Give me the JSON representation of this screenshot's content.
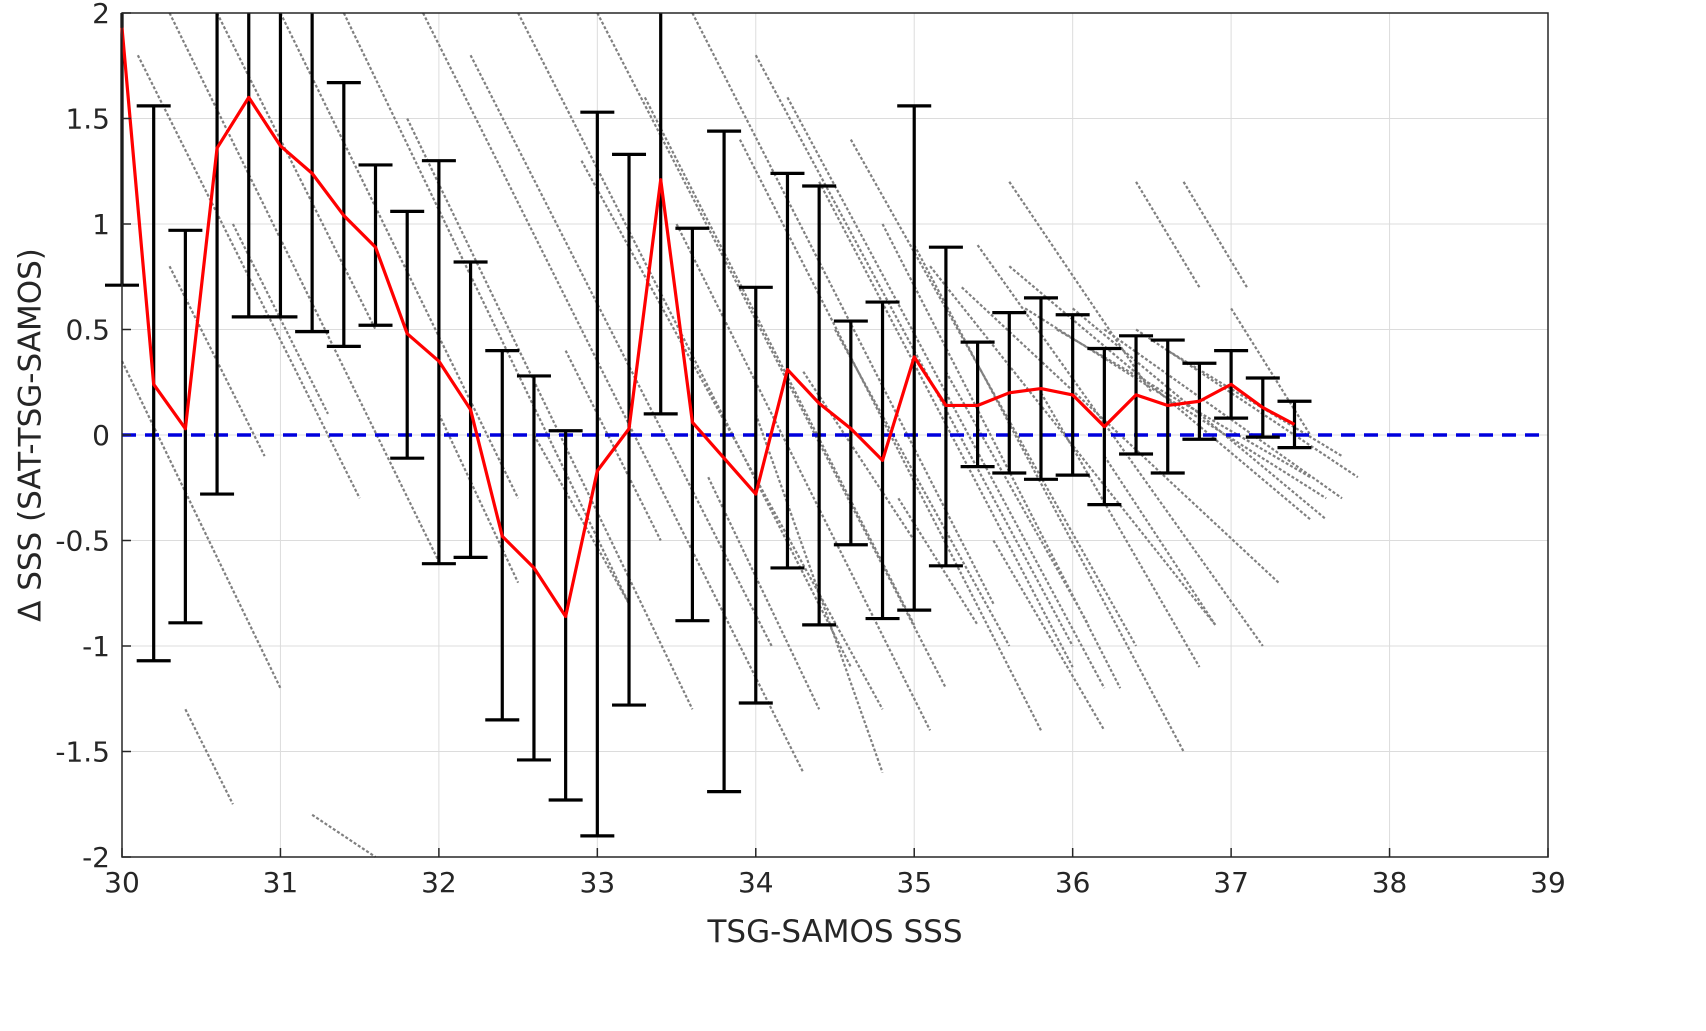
{
  "chart_data": {
    "type": "line",
    "title": "",
    "xlabel": "TSG-SAMOS SSS",
    "ylabel": "Δ SSS (SAT-TSG-SAMOS)",
    "xlim": [
      30,
      39
    ],
    "ylim": [
      -2,
      2
    ],
    "xticks": [
      "30",
      "31",
      "32",
      "33",
      "34",
      "35",
      "36",
      "37",
      "38",
      "39"
    ],
    "yticks": [
      "-2",
      "-1.5",
      "-1",
      "-0.5",
      "0",
      "0.5",
      "1",
      "1.5",
      "2"
    ],
    "grid": true,
    "reference_line": {
      "y": 0,
      "style": "dashed",
      "color": "#0000dd"
    },
    "colors": {
      "mean": "#ff0000",
      "errorbar": "#000000",
      "scatter": "#808080"
    },
    "series": [
      {
        "type": "line-errorbar",
        "x": [
          30.0,
          30.2,
          30.4,
          30.6,
          30.8,
          31.0,
          31.2,
          31.4,
          31.6,
          31.8,
          32.0,
          32.2,
          32.4,
          32.6,
          32.8,
          33.0,
          33.2,
          33.4,
          33.6,
          33.8,
          34.0,
          34.2,
          34.4,
          34.6,
          34.8,
          35.0,
          35.2,
          35.4,
          35.6,
          35.8,
          36.0,
          36.2,
          36.4,
          36.6,
          36.8,
          37.0,
          37.2,
          37.4
        ],
        "y": [
          1.93,
          0.24,
          0.03,
          1.36,
          1.6,
          1.37,
          1.24,
          1.04,
          0.89,
          0.48,
          0.35,
          0.12,
          -0.48,
          -0.63,
          -0.86,
          -0.17,
          0.03,
          1.21,
          0.06,
          -0.11,
          -0.28,
          0.31,
          0.15,
          0.03,
          -0.12,
          0.37,
          0.14,
          0.14,
          0.2,
          0.22,
          0.19,
          0.04,
          0.19,
          0.14,
          0.16,
          0.24,
          0.13,
          0.05
        ],
        "err_low": [
          0.71,
          -1.07,
          -0.89,
          -0.28,
          0.56,
          0.56,
          0.49,
          0.42,
          0.52,
          -0.11,
          -0.61,
          -0.58,
          -1.35,
          -1.54,
          -1.73,
          -1.9,
          -1.28,
          0.1,
          -0.88,
          -1.69,
          -1.27,
          -0.63,
          -0.9,
          -0.52,
          -0.87,
          -0.83,
          -0.62,
          -0.15,
          -0.18,
          -0.21,
          -0.19,
          -0.33,
          -0.09,
          -0.18,
          -0.02,
          0.08,
          -0.01,
          -0.06
        ],
        "err_high": [
          2.0,
          1.56,
          0.97,
          2.0,
          2.0,
          2.0,
          2.0,
          1.67,
          1.28,
          1.06,
          1.3,
          0.82,
          0.4,
          0.28,
          0.02,
          1.53,
          1.33,
          2.0,
          0.98,
          1.44,
          0.7,
          1.24,
          1.18,
          0.54,
          0.63,
          1.56,
          0.89,
          0.44,
          0.58,
          0.65,
          0.57,
          0.41,
          0.47,
          0.45,
          0.34,
          0.4,
          0.27,
          0.16
        ]
      },
      {
        "type": "scatter-streaks",
        "slope": -1.5,
        "segments": [
          [
            30.0,
            0.35,
            31.0,
            -1.2
          ],
          [
            30.1,
            1.8,
            31.5,
            -0.3
          ],
          [
            30.3,
            2.0,
            32.0,
            -0.6
          ],
          [
            30.6,
            2.0,
            31.6,
            0.5
          ],
          [
            30.3,
            0.8,
            30.9,
            -0.1
          ],
          [
            30.4,
            -1.3,
            30.7,
            -1.75
          ],
          [
            30.7,
            1.0,
            31.3,
            0.1
          ],
          [
            31.2,
            -1.8,
            31.6,
            -2.0
          ],
          [
            31.0,
            2.0,
            32.5,
            -0.3
          ],
          [
            31.4,
            2.0,
            33.2,
            -0.8
          ],
          [
            31.8,
            1.5,
            33.6,
            -1.3
          ],
          [
            31.9,
            2.0,
            34.3,
            -1.6
          ],
          [
            32.2,
            1.8,
            34.1,
            -1.0
          ],
          [
            32.5,
            2.0,
            34.6,
            -1.1
          ],
          [
            32.9,
            1.3,
            34.8,
            -1.3
          ],
          [
            33.0,
            2.0,
            35.2,
            -1.2
          ],
          [
            32.8,
            0.4,
            33.4,
            -0.5
          ],
          [
            33.3,
            1.6,
            35.0,
            -0.9
          ],
          [
            33.6,
            2.0,
            35.5,
            -0.8
          ],
          [
            33.9,
            1.4,
            35.8,
            -1.4
          ],
          [
            34.0,
            1.8,
            36.0,
            -1.0
          ],
          [
            34.2,
            1.6,
            36.2,
            -1.2
          ],
          [
            34.4,
            1.2,
            36.0,
            -1.1
          ],
          [
            34.6,
            1.4,
            36.4,
            -1.0
          ],
          [
            34.8,
            1.0,
            36.3,
            -1.2
          ],
          [
            35.0,
            0.9,
            36.7,
            -1.5
          ],
          [
            35.1,
            0.8,
            36.9,
            -0.9
          ],
          [
            35.3,
            0.7,
            37.3,
            -0.7
          ],
          [
            35.4,
            0.9,
            37.2,
            -1.0
          ],
          [
            35.6,
            0.8,
            37.5,
            -0.4
          ],
          [
            35.7,
            0.6,
            37.6,
            -0.3
          ],
          [
            35.9,
            0.5,
            37.5,
            -0.2
          ],
          [
            36.0,
            0.6,
            37.6,
            -0.4
          ],
          [
            36.2,
            0.5,
            37.7,
            -0.3
          ],
          [
            36.4,
            0.5,
            37.8,
            -0.2
          ],
          [
            36.6,
            0.4,
            37.7,
            -0.1
          ],
          [
            37.0,
            0.6,
            37.5,
            0.0
          ],
          [
            36.4,
            1.2,
            36.8,
            0.7
          ],
          [
            36.7,
            1.2,
            37.1,
            0.7
          ],
          [
            35.6,
            1.2,
            36.5,
            0.2
          ],
          [
            33.5,
            1.0,
            35.1,
            -1.4
          ],
          [
            34.3,
            0.3,
            35.0,
            -0.5
          ],
          [
            34.9,
            -0.3,
            35.4,
            -0.9
          ],
          [
            35.5,
            -0.5,
            36.2,
            -1.4
          ],
          [
            33.7,
            -0.2,
            34.4,
            -1.3
          ],
          [
            32.6,
            0.0,
            33.2,
            -0.8
          ],
          [
            34.0,
            0.1,
            34.8,
            -1.6
          ],
          [
            32.0,
            0.1,
            32.5,
            -0.7
          ],
          [
            35.2,
            0.3,
            36.1,
            -0.9
          ],
          [
            35.8,
            0.2,
            36.8,
            -1.1
          ],
          [
            36.2,
            -0.1,
            36.9,
            -0.9
          ],
          [
            34.5,
            0.5,
            35.6,
            -1.0
          ]
        ]
      }
    ]
  }
}
